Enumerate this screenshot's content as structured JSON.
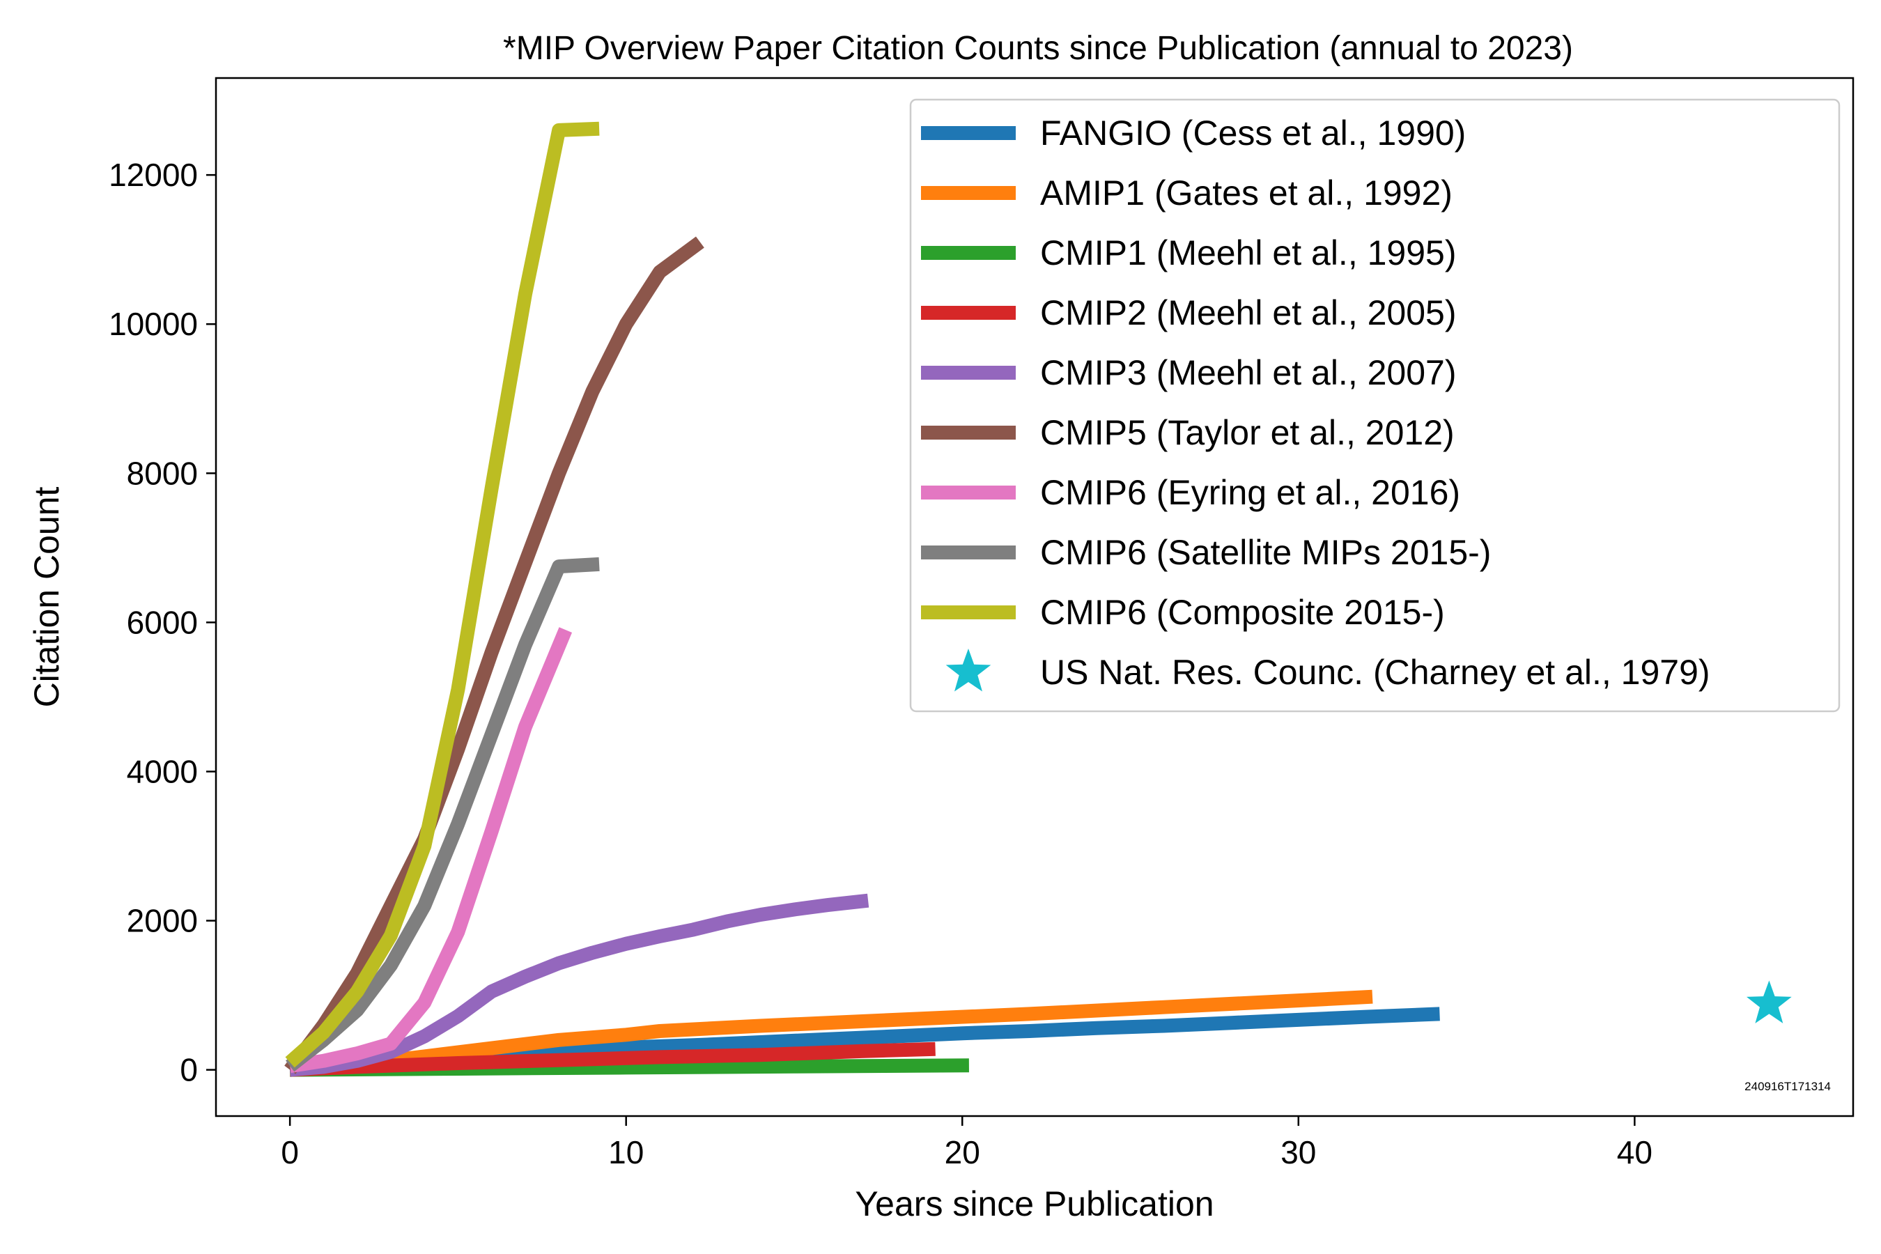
{
  "chart_data": {
    "type": "line",
    "title": "*MIP Overview Paper Citation Counts since Publication (annual to 2023)",
    "xlabel": "Years since Publication",
    "ylabel": "Citation Count",
    "xlim": [
      -2.2,
      46.5
    ],
    "ylim": [
      -620,
      13300
    ],
    "xticks": [
      0,
      10,
      20,
      30,
      40
    ],
    "yticks": [
      0,
      2000,
      4000,
      6000,
      8000,
      10000,
      12000
    ],
    "grid": false,
    "legend_position": "top-right",
    "stamp": "240916T171314",
    "series": [
      {
        "name": "FANGIO (Cess et al., 1990)",
        "color": "#1f77b4",
        "x": [
          0,
          2,
          4,
          6,
          8,
          10,
          12,
          14,
          16,
          18,
          20,
          22,
          24,
          26,
          28,
          30,
          32,
          34.2
        ],
        "y": [
          0,
          40,
          110,
          180,
          250,
          300,
          330,
          370,
          410,
          450,
          490,
          520,
          560,
          590,
          630,
          670,
          710,
          750
        ]
      },
      {
        "name": "AMIP1 (Gates et al., 1992)",
        "color": "#ff7f0e",
        "x": [
          0,
          2,
          4,
          6,
          8,
          10,
          11,
          14,
          18,
          22,
          26,
          30,
          32.2
        ],
        "y": [
          0,
          70,
          180,
          290,
          400,
          470,
          520,
          590,
          670,
          750,
          840,
          930,
          980
        ]
      },
      {
        "name": "CMIP1 (Meehl et al., 1995)",
        "color": "#2ca02c",
        "x": [
          0,
          5,
          10,
          15,
          20.2
        ],
        "y": [
          0,
          15,
          30,
          45,
          60
        ]
      },
      {
        "name": "CMIP2 (Meehl et al., 2005)",
        "color": "#d62728",
        "x": [
          0,
          2,
          5,
          8,
          11,
          14,
          17,
          19.2
        ],
        "y": [
          0,
          40,
          90,
          130,
          170,
          200,
          250,
          280
        ]
      },
      {
        "name": "CMIP3 (Meehl et al., 2007)",
        "color": "#9467bd",
        "x": [
          0,
          1,
          2,
          3,
          4,
          5,
          6,
          7,
          8,
          9,
          10,
          11,
          12,
          13,
          14,
          15,
          16,
          17.2
        ],
        "y": [
          0,
          40,
          120,
          240,
          450,
          720,
          1050,
          1250,
          1430,
          1570,
          1690,
          1790,
          1880,
          1990,
          2080,
          2150,
          2210,
          2270
        ]
      },
      {
        "name": "CMIP5 (Taylor et al., 2012)",
        "color": "#8c564b",
        "x": [
          0,
          1,
          2,
          3,
          4,
          5,
          6,
          7,
          8,
          9,
          10,
          11,
          12.2
        ],
        "y": [
          0,
          600,
          1300,
          2200,
          3100,
          4300,
          5600,
          6800,
          8000,
          9100,
          10000,
          10700,
          11100
        ]
      },
      {
        "name": "CMIP6 (Eyring et al., 2016)",
        "color": "#e377c2",
        "x": [
          0,
          1,
          2,
          3,
          4,
          5,
          6,
          7,
          8.2
        ],
        "y": [
          50,
          120,
          220,
          350,
          900,
          1850,
          3200,
          4600,
          5900
        ]
      },
      {
        "name": "CMIP6 (Satellite MIPs 2015-)",
        "color": "#7f7f7f",
        "x": [
          0,
          1,
          2,
          3,
          4,
          5,
          6,
          7,
          8,
          9.2
        ],
        "y": [
          50,
          400,
          800,
          1400,
          2200,
          3300,
          4500,
          5700,
          6750,
          6780
        ]
      },
      {
        "name": "CMIP6 (Composite 2015-)",
        "color": "#bcbd22",
        "x": [
          0,
          1,
          2,
          3,
          4,
          5,
          6,
          7,
          8,
          9.2
        ],
        "y": [
          100,
          500,
          1050,
          1800,
          3000,
          5100,
          7800,
          10400,
          12600,
          12620
        ]
      }
    ],
    "points": [
      {
        "name": "US Nat. Res. Counc. (Charney et al., 1979)",
        "color": "#17becf",
        "marker": "star",
        "x": 44,
        "y": 880
      }
    ]
  }
}
